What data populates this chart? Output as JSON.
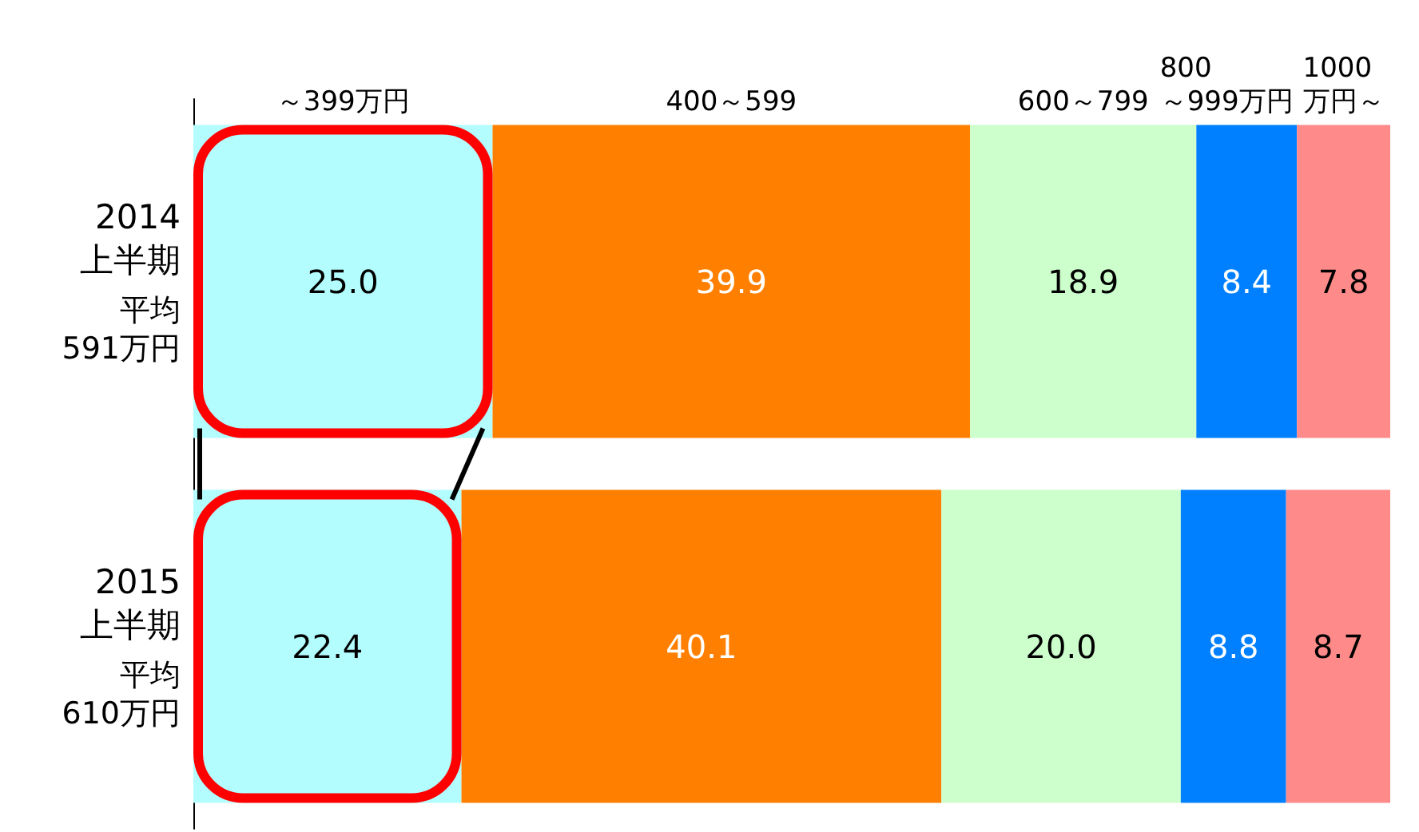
{
  "chart_data": {
    "type": "bar",
    "orientation": "horizontal",
    "stacked": true,
    "legend": false,
    "tick_labels": "y",
    "xlim": [
      0,
      100
    ],
    "categories": [
      "2014\n上半期",
      "2015\n上半期"
    ],
    "annotations": [
      "平均591万円",
      "平均610万円"
    ],
    "series": [
      {
        "name": "～399万円",
        "color": "#b3fdff",
        "values": [
          25.0,
          22.4
        ],
        "value_labels": [
          "25.0",
          "22.4"
        ]
      },
      {
        "name": "400～599",
        "color": "#ff8000",
        "values": [
          39.9,
          40.1
        ],
        "value_labels": [
          "39.9",
          "40.1"
        ]
      },
      {
        "name": "600～799",
        "color": "#ccffcc",
        "values": [
          18.9,
          20.0
        ],
        "value_labels": [
          "18.9",
          "20.0"
        ]
      },
      {
        "name": "800\n～999万円",
        "color": "#0080ff",
        "values": [
          8.4,
          8.8
        ],
        "value_labels": [
          "8.4",
          "8.8"
        ]
      },
      {
        "name": "1000\n万円～",
        "color": "#ff8a8a",
        "values": [
          7.8,
          8.7
        ],
        "value_labels": [
          "7.8",
          "8.7"
        ]
      }
    ]
  }
}
